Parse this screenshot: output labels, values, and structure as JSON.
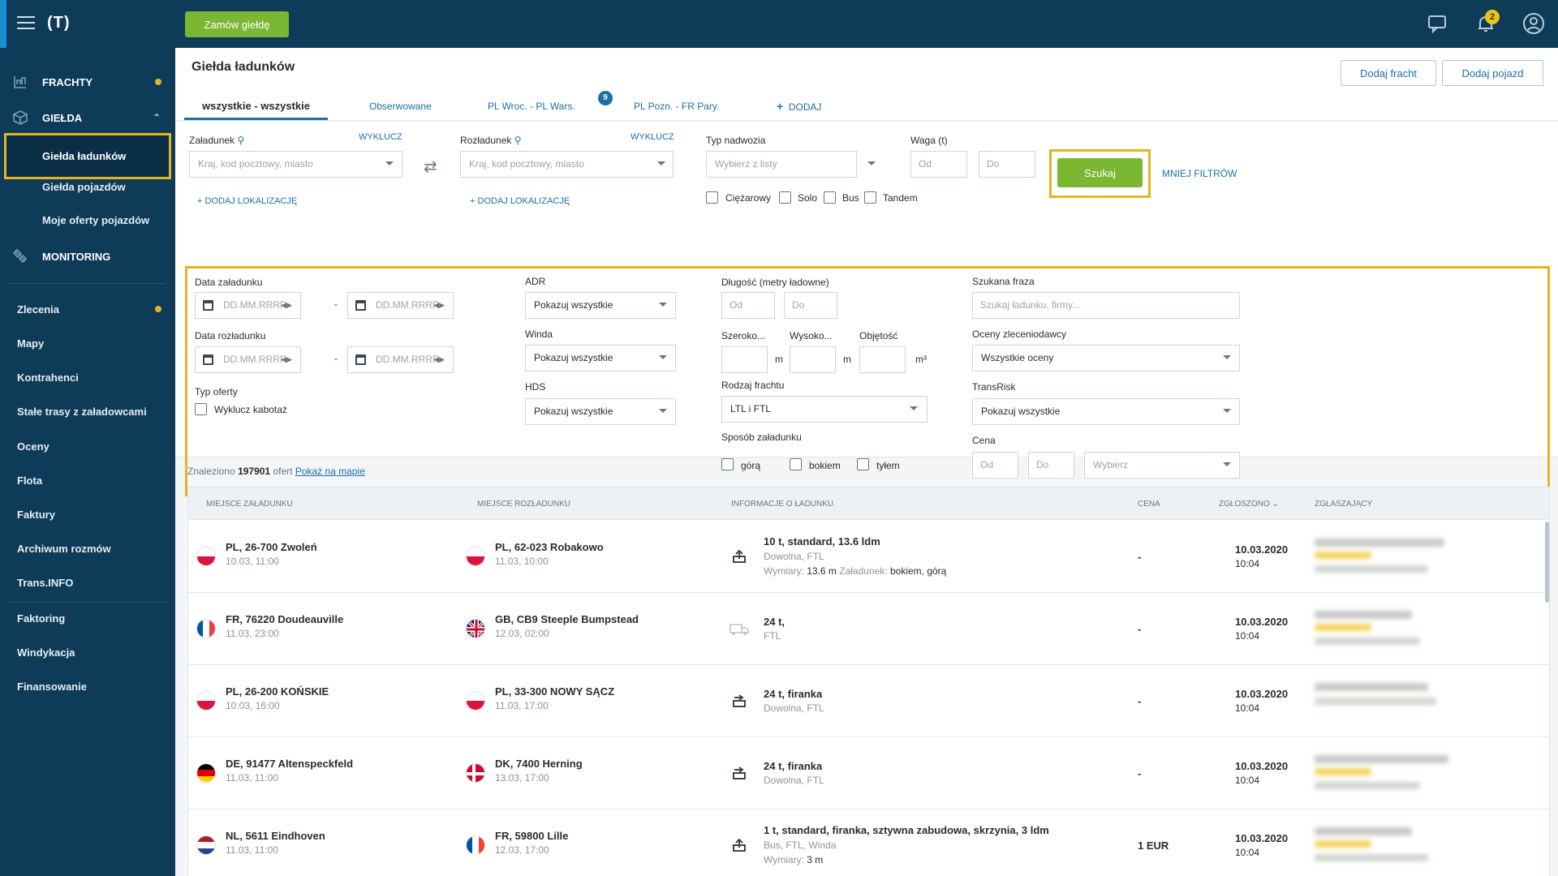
{
  "topbar": {
    "logo": "(T)",
    "order_button": "Zamów giełdę",
    "notifications_count": "2"
  },
  "sidebar": {
    "sections": [
      {
        "label": "FRACHTY",
        "icon": "freight-icon"
      },
      {
        "label": "GIEŁDA",
        "icon": "exchange-box-icon"
      },
      {
        "label": "MONITORING",
        "icon": "satellite-icon"
      }
    ],
    "gielda_items": [
      "Giełda ładunków",
      "Giełda pojazdów",
      "Moje oferty pojazdów"
    ],
    "items": [
      "Zlecenia",
      "Mapy",
      "Kontrahenci",
      "Stałe trasy z załadowcami",
      "Oceny",
      "Flota",
      "Faktury",
      "Archiwum rozmów",
      "Trans.INFO",
      "Faktoring",
      "Windykacja",
      "Finansowanie"
    ]
  },
  "header": {
    "title": "Giełda ładunków",
    "add_freight": "Dodaj fracht",
    "add_vehicle": "Dodaj pojazd"
  },
  "tabs": [
    {
      "label": "wszystkie - wszystkie"
    },
    {
      "label": "Obserwowane"
    },
    {
      "label": "PL Wroc. - PL Wars.",
      "badge": "9"
    },
    {
      "label": "PL Pozn. - FR Pary."
    },
    {
      "label": "DODAJ"
    }
  ],
  "filters": {
    "loading_label": "Załadunek",
    "unloading_label": "Rozładunek",
    "exclude": "WYKLUCZ",
    "location_placeholder": "Kraj, kod pocztowy, miasto",
    "add_location": "DODAJ LOKALIZACJĘ",
    "body_type_label": "Typ nadwozia",
    "body_type_placeholder": "Wybierz z listy",
    "weight_label": "Waga (t)",
    "from": "Od",
    "to": "Do",
    "search_button": "Szukaj",
    "fewer_filters": "MNIEJ FILTRÓW",
    "vehicle_types": [
      "Ciężarowy",
      "Solo",
      "Bus",
      "Tandem"
    ],
    "loading_date": "Data załadunku",
    "unloading_date": "Data rozładunku",
    "date_placeholder": "DD.MM.RRRR",
    "offer_type": "Typ oferty",
    "exclude_cabotage": "Wyklucz kabotaż",
    "adr": "ADR",
    "winda": "Winda",
    "hds": "HDS",
    "show_all": "Pokazuj wszystkie",
    "length_label": "Długość (metry ładowne)",
    "width_label": "Szeroko...",
    "height_label": "Wysoko...",
    "volume_label": "Objętość",
    "unit_m": "m",
    "unit_m3": "m³",
    "freight_type_label": "Rodzaj frachtu",
    "freight_type_value": "LTL i FTL",
    "loading_method": "Sposób załadunku",
    "loading_methods": [
      "górą",
      "bokiem",
      "tyłem"
    ],
    "phrase_label": "Szukana fraza",
    "phrase_placeholder": "Szukaj ładunku, firmy...",
    "ratings_label": "Oceny zleceniodawcy",
    "ratings_value": "Wszystkie oceny",
    "transrisk_label": "TransRisk",
    "price_label": "Cena",
    "price_choose": "Wybierz"
  },
  "results": {
    "found_prefix": "Znaleziono",
    "found_count": "197901",
    "found_suffix": "ofert",
    "map_link": "Pokaż na mapie",
    "columns": [
      "MIEJSCE ZAŁADUNKU",
      "MIEJSCE ROZŁADUNKU",
      "INFORMACJE O ŁADUNKU",
      "CENA",
      "ZGŁOSZONO",
      "ZGŁASZAJĄCY"
    ],
    "rows": [
      {
        "from": "PL, 26-700 Zwoleń",
        "from_date": "10.03, 11:00",
        "from_flag": "pl",
        "to": "PL, 62-023 Robakowo",
        "to_date": "11.03, 10:00",
        "to_flag": "pl",
        "cargo": "10 t, standard, 13.6 ldm",
        "cargo_sub": "Dowolna, FTL",
        "extra_label1": "Wymiary:",
        "extra_val1": "13.6 m",
        "extra_label2": "Załadunek:",
        "extra_val2": "bokiem, górą",
        "price": "-",
        "date": "10.03.2020",
        "time": "10:04"
      },
      {
        "from": "FR, 76220 Doudeauville",
        "from_date": "11.03, 23:00",
        "from_flag": "fr",
        "to": "GB, CB9 Steeple Bumpstead",
        "to_date": "12.03, 02:00",
        "to_flag": "gb",
        "cargo": "24 t,",
        "cargo_sub": "FTL",
        "price": "-",
        "date": "10.03.2020",
        "time": "10:04"
      },
      {
        "from": "PL, 26-200 KOŃSKIE",
        "from_date": "10.03, 16:00",
        "from_flag": "pl",
        "to": "PL, 33-300 NOWY SĄCZ",
        "to_date": "11.03, 17:00",
        "to_flag": "pl",
        "cargo": "24 t, firanka",
        "cargo_sub": "Dowolna, FTL",
        "price": "-",
        "date": "10.03.2020",
        "time": "10:04"
      },
      {
        "from": "DE, 91477 Altenspeckfeld",
        "from_date": "11.03, 11:00",
        "from_flag": "de",
        "to": "DK, 7400 Herning",
        "to_date": "13.03, 17:00",
        "to_flag": "dk",
        "cargo": "24 t, firanka",
        "cargo_sub": "Dowolna, FTL",
        "price": "-",
        "date": "10.03.2020",
        "time": "10:04"
      },
      {
        "from": "NL, 5611 Eindhoven",
        "from_date": "11.03, 11:00",
        "from_flag": "nl",
        "to": "FR, 59800 Lille",
        "to_date": "12.03, 17:00",
        "to_flag": "fr",
        "cargo": "1 t, standard, firanka, sztywna zabudowa, skrzynia, 3 ldm",
        "cargo_sub": "Bus, FTL, Winda",
        "extra_label1": "Wymiary:",
        "extra_val1": "3 m",
        "price": "1 EUR",
        "date": "10.03.2020",
        "time": "10:04"
      }
    ]
  },
  "colors": {
    "navy": "#0e3b58",
    "green": "#7ab733",
    "highlight": "#e3b61f",
    "link": "#1d6fa5"
  }
}
